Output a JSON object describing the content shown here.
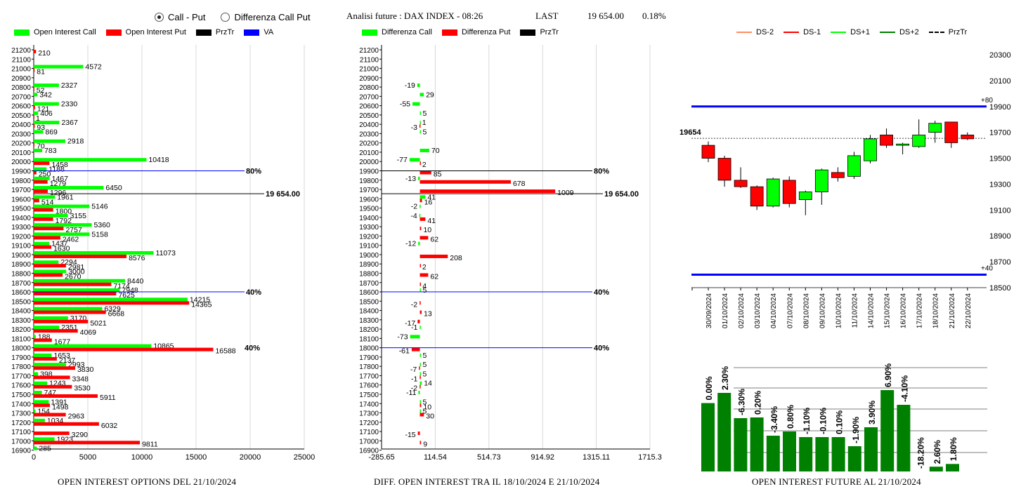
{
  "header": {
    "radio_call_put": "Call - Put",
    "radio_diff": "Differenza Call Put",
    "analysis_label": "Analisi future : DAX INDEX - 08:26",
    "last_label": "LAST",
    "last_value": "19 654.00",
    "last_change": "0.18%"
  },
  "panel1": {
    "legend": [
      "Open Interest Call",
      "Open Interest Put",
      "PrzTr",
      "VA"
    ],
    "footer": "OPEN INTEREST OPTIONS DEL 21/10/2024"
  },
  "panel2": {
    "legend": [
      "Differenza Call",
      "Differenza Put",
      "PrzTr"
    ],
    "footer": "DIFF. OPEN INTEREST TRA IL 18/10/2024 E 21/10/2024"
  },
  "panel3": {
    "legend": [
      "DS-2",
      "DS-1",
      "DS+1",
      "DS+2",
      "PrzTr"
    ],
    "footer": "OPEN INTEREST FUTURE AL 21/10/2024"
  },
  "colors": {
    "call": "#00ff00",
    "put": "#ff0000",
    "prztr": "#000000",
    "va": "#0000ff",
    "bar": "#008000",
    "ds_minus2": "#ff8c60",
    "ds_minus1": "#ff0000",
    "ds_plus1": "#00ff00",
    "ds_plus2": "#008000"
  },
  "chart_data": [
    {
      "type": "bar",
      "orientation": "horizontal",
      "categories": [
        "21200",
        "21100",
        "21000",
        "20900",
        "20800",
        "20700",
        "20600",
        "20500",
        "20400",
        "20300",
        "20200",
        "20100",
        "20000",
        "19900",
        "19800",
        "19700",
        "19600",
        "19500",
        "19400",
        "19300",
        "19200",
        "19100",
        "19000",
        "18900",
        "18800",
        "18700",
        "18600",
        "18500",
        "18400",
        "18300",
        "18200",
        "18100",
        "18000",
        "17900",
        "17800",
        "17700",
        "17600",
        "17500",
        "17400",
        "17300",
        "17200",
        "17100",
        "17000",
        "16900"
      ],
      "series": [
        {
          "name": "Open Interest Call",
          "values": [
            null,
            null,
            4572,
            null,
            2327,
            342,
            2330,
            406,
            2367,
            869,
            2918,
            783,
            10418,
            1188,
            1467,
            6450,
            1961,
            5146,
            3155,
            5360,
            5158,
            1437,
            11073,
            2294,
            3000,
            8440,
            7948,
            14215,
            6329,
            3170,
            2351,
            188,
            10865,
            1653,
            2993,
            398,
            1243,
            747,
            1391,
            154,
            1034,
            null,
            1923,
            285
          ]
        },
        {
          "name": "Open Interest Put",
          "values": [
            210,
            null,
            81,
            null,
            52,
            null,
            121,
            1,
            93,
            null,
            70,
            null,
            1458,
            250,
            1279,
            1296,
            514,
            1800,
            1792,
            2757,
            2462,
            1630,
            8576,
            2981,
            2670,
            7174,
            7625,
            14365,
            6668,
            5021,
            4069,
            1677,
            16588,
            2137,
            3830,
            3348,
            3530,
            5911,
            1498,
            2963,
            6032,
            3290,
            9811,
            null
          ]
        }
      ],
      "xlim": [
        0,
        25000
      ],
      "x_ticks": [
        0,
        5000,
        10000,
        15000,
        20000,
        25000
      ],
      "markers": [
        {
          "label": "80%",
          "at": "19900",
          "series": "VA"
        },
        {
          "label": "19 654.00",
          "at": 19654,
          "series": "PrzTr"
        },
        {
          "label": "40%",
          "at": "18600",
          "series": "VA"
        },
        {
          "label": "40%",
          "at": "18000",
          "series": "VA"
        }
      ],
      "grid": true
    },
    {
      "type": "bar",
      "orientation": "horizontal",
      "categories": [
        "21200",
        "21100",
        "21000",
        "20900",
        "20800",
        "20700",
        "20600",
        "20500",
        "20400",
        "20300",
        "20200",
        "20100",
        "20000",
        "19900",
        "19800",
        "19700",
        "19600",
        "19500",
        "19400",
        "19300",
        "19200",
        "19100",
        "19000",
        "18900",
        "18800",
        "18700",
        "18600",
        "18500",
        "18400",
        "18300",
        "18200",
        "18100",
        "18000",
        "17900",
        "17800",
        "17700",
        "17600",
        "17500",
        "17400",
        "17300",
        "17200",
        "17100",
        "17000",
        "16900"
      ],
      "series": [
        {
          "name": "Differenza Call",
          "values": [
            null,
            null,
            null,
            null,
            -19,
            29,
            -55,
            5,
            1,
            5,
            null,
            70,
            -77,
            null,
            -13,
            null,
            41,
            -2,
            -4,
            null,
            null,
            -12,
            null,
            null,
            null,
            null,
            5,
            null,
            null,
            null,
            -1,
            -73,
            null,
            5,
            5,
            5,
            14,
            -11,
            5,
            5,
            null,
            null,
            null,
            null
          ]
        },
        {
          "name": "Differenza Put",
          "values": [
            null,
            null,
            null,
            null,
            null,
            null,
            null,
            null,
            -3,
            null,
            null,
            null,
            2,
            85,
            678,
            1009,
            16,
            null,
            41,
            10,
            62,
            null,
            208,
            2,
            62,
            4,
            null,
            -2,
            13,
            -17,
            null,
            null,
            -61,
            null,
            -7,
            -1,
            -2,
            null,
            10,
            30,
            null,
            -15,
            9,
            null
          ]
        }
      ],
      "xlim": [
        -285.65,
        1715.3
      ],
      "x_ticks": [
        -285.65,
        114.54,
        514.73,
        914.92,
        1315.11,
        1715.3
      ],
      "x_tick_labels": [
        "-285.65",
        "114.54",
        "514.73",
        "914.92",
        "1315.11",
        "1715.3"
      ],
      "markers": [
        {
          "label": "80%",
          "at": "19900"
        },
        {
          "label": "19 654.00",
          "at": 19654
        },
        {
          "label": "40%",
          "at": "18600"
        },
        {
          "label": "40%",
          "at": "18000"
        }
      ],
      "grid": true
    },
    {
      "type": "candlestick",
      "dates": [
        "30/09/2024",
        "01/10/2024",
        "02/10/2024",
        "03/10/2024",
        "04/10/2024",
        "07/10/2024",
        "08/10/2024",
        "09/10/2024",
        "10/10/2024",
        "11/10/2024",
        "14/10/2024",
        "15/10/2024",
        "16/10/2024",
        "17/10/2024",
        "18/10/2024",
        "21/10/2024",
        "22/10/2024"
      ],
      "ohlc": [
        [
          19600,
          19630,
          19470,
          19500
        ],
        [
          19500,
          19520,
          19280,
          19330
        ],
        [
          19330,
          19430,
          19270,
          19280
        ],
        [
          19280,
          19290,
          19100,
          19130
        ],
        [
          19130,
          19350,
          19120,
          19340
        ],
        [
          19330,
          19360,
          19120,
          19150
        ],
        [
          19180,
          19250,
          19060,
          19240
        ],
        [
          19240,
          19420,
          19140,
          19410
        ],
        [
          19390,
          19430,
          19320,
          19350
        ],
        [
          19360,
          19550,
          19340,
          19520
        ],
        [
          19480,
          19680,
          19460,
          19650
        ],
        [
          19680,
          19730,
          19580,
          19600
        ],
        [
          19600,
          19620,
          19530,
          19610
        ],
        [
          19590,
          19800,
          19580,
          19680
        ],
        [
          19700,
          19790,
          19620,
          19770
        ],
        [
          19780,
          19780,
          19580,
          19620
        ],
        [
          19680,
          19700,
          19640,
          19650
        ]
      ],
      "y_ticks": [
        18500,
        18700,
        18900,
        19100,
        19300,
        19500,
        19700,
        19900,
        20100,
        20300
      ],
      "ylim": [
        18500,
        20400
      ],
      "lines": [
        {
          "label": "+80",
          "value": 19900,
          "color": "#0000ff"
        },
        {
          "label": "+40",
          "value": 18600,
          "color": "#0000ff"
        },
        {
          "label": "19654",
          "value": 19654,
          "style": "dashed"
        }
      ]
    },
    {
      "type": "bar",
      "categories": [
        "30/09/2024",
        "01/10/2024",
        "02/10/2024",
        "03/10/2024",
        "04/10/2024",
        "07/10/2024",
        "08/10/2024",
        "09/10/2024",
        "10/10/2024",
        "11/10/2024",
        "14/10/2024",
        "15/10/2024",
        "16/10/2024",
        "17/10/2024",
        "18/10/2024",
        "21/10/2024"
      ],
      "value_labels": [
        "0.00%",
        "2.30%",
        "-6.30%",
        "0.20%",
        "-3.40%",
        "0.80%",
        "-1.10%",
        "-0.10%",
        "0.10%",
        "-1.90%",
        "3.90%",
        "6.90%",
        "-4.10%",
        "-18.20%",
        "2.60%",
        "1.80%"
      ],
      "heights": [
        97.5,
        112,
        76,
        77,
        51,
        57,
        49,
        49,
        49,
        36,
        63,
        116,
        95,
        0,
        6.8,
        10.7
      ]
    }
  ]
}
